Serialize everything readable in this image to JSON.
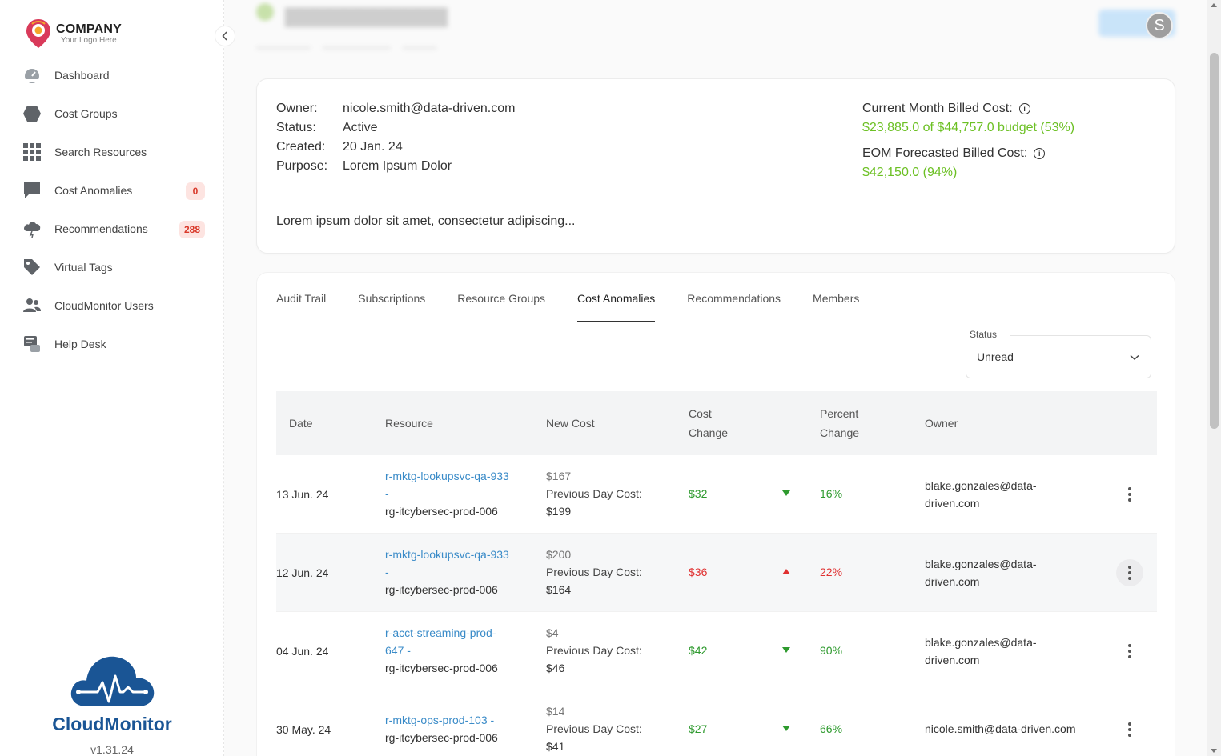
{
  "logo": {
    "company": "COMPANY",
    "tagline": "Your Logo Here"
  },
  "sidebar": {
    "items": [
      {
        "label": "Dashboard",
        "icon": "gauge-icon"
      },
      {
        "label": "Cost Groups",
        "icon": "hexagon-icon"
      },
      {
        "label": "Search Resources",
        "icon": "grid-icon"
      },
      {
        "label": "Cost Anomalies",
        "icon": "chat-bubble-icon",
        "badge": "0"
      },
      {
        "label": "Recommendations",
        "icon": "cloud-bolt-icon",
        "badge": "288"
      },
      {
        "label": "Virtual Tags",
        "icon": "tag-icon"
      },
      {
        "label": "CloudMonitor Users",
        "icon": "users-icon"
      },
      {
        "label": "Help Desk",
        "icon": "help-desk-icon"
      }
    ]
  },
  "brand": {
    "name": "CloudMonitor",
    "version": "v1.31.24"
  },
  "header": {
    "avatar_initial": "S"
  },
  "info": {
    "owner_label": "Owner:",
    "owner": "nicole.smith@data-driven.com",
    "status_label": "Status:",
    "status": "Active",
    "created_label": "Created:",
    "created": "20 Jan. 24",
    "purpose_label": "Purpose:",
    "purpose": "Lorem Ipsum Dolor",
    "description": "Lorem ipsum dolor sit amet, consectetur adipiscing...",
    "current_cost_label": "Current Month Billed Cost:",
    "current_cost_value": "$23,885.0 of $44,757.0 budget (53%)",
    "eom_cost_label": "EOM Forecasted Billed Cost:",
    "eom_cost_value": "$42,150.0 (94%)"
  },
  "tabs": [
    {
      "label": "Audit Trail"
    },
    {
      "label": "Subscriptions"
    },
    {
      "label": "Resource Groups"
    },
    {
      "label": "Cost Anomalies",
      "active": true
    },
    {
      "label": "Recommendations"
    },
    {
      "label": "Members"
    }
  ],
  "filter": {
    "status_label": "Status",
    "status_value": "Unread"
  },
  "table": {
    "headers": {
      "date": "Date",
      "resource": "Resource",
      "new_cost": "New Cost",
      "cost_change_1": "Cost",
      "cost_change_2": "Change",
      "percent_change_1": "Percent",
      "percent_change_2": "Change",
      "owner": "Owner"
    },
    "prev_label": "Previous Day Cost:",
    "rows": [
      {
        "date": "13 Jun. 24",
        "resource_1": "r-mktg-lookupsvc-qa-933",
        "resource_2": "-",
        "group": "rg-itcybersec-prod-006",
        "new_cost": "$167",
        "prev_cost": "$199",
        "cost_change": "$32",
        "percent": "16%",
        "direction": "down",
        "owner_1": "blake.gonzales@data-",
        "owner_2": "driven.com"
      },
      {
        "date": "12 Jun. 24",
        "resource_1": "r-mktg-lookupsvc-qa-933",
        "resource_2": "-",
        "group": "rg-itcybersec-prod-006",
        "new_cost": "$200",
        "prev_cost": "$164",
        "cost_change": "$36",
        "percent": "22%",
        "direction": "up",
        "owner_1": "blake.gonzales@data-",
        "owner_2": "driven.com"
      },
      {
        "date": "04 Jun. 24",
        "resource_1": "r-acct-streaming-prod-",
        "resource_2": "647 -",
        "group": "rg-itcybersec-prod-006",
        "new_cost": "$4",
        "prev_cost": "$46",
        "cost_change": "$42",
        "percent": "90%",
        "direction": "down",
        "owner_1": "blake.gonzales@data-",
        "owner_2": "driven.com"
      },
      {
        "date": "30 May. 24",
        "resource_1": "r-mktg-ops-prod-103 -",
        "resource_2": "",
        "group": "rg-itcybersec-prod-006",
        "new_cost": "$14",
        "prev_cost": "$41",
        "cost_change": "$27",
        "percent": "66%",
        "direction": "down",
        "owner_1": "nicole.smith@data-driven.com",
        "owner_2": ""
      }
    ]
  },
  "colors": {
    "accent": "#1a5595",
    "positive": "#2e9a2e",
    "negative": "#e03030",
    "budget": "#6cc024",
    "link": "#3a8bc8"
  }
}
